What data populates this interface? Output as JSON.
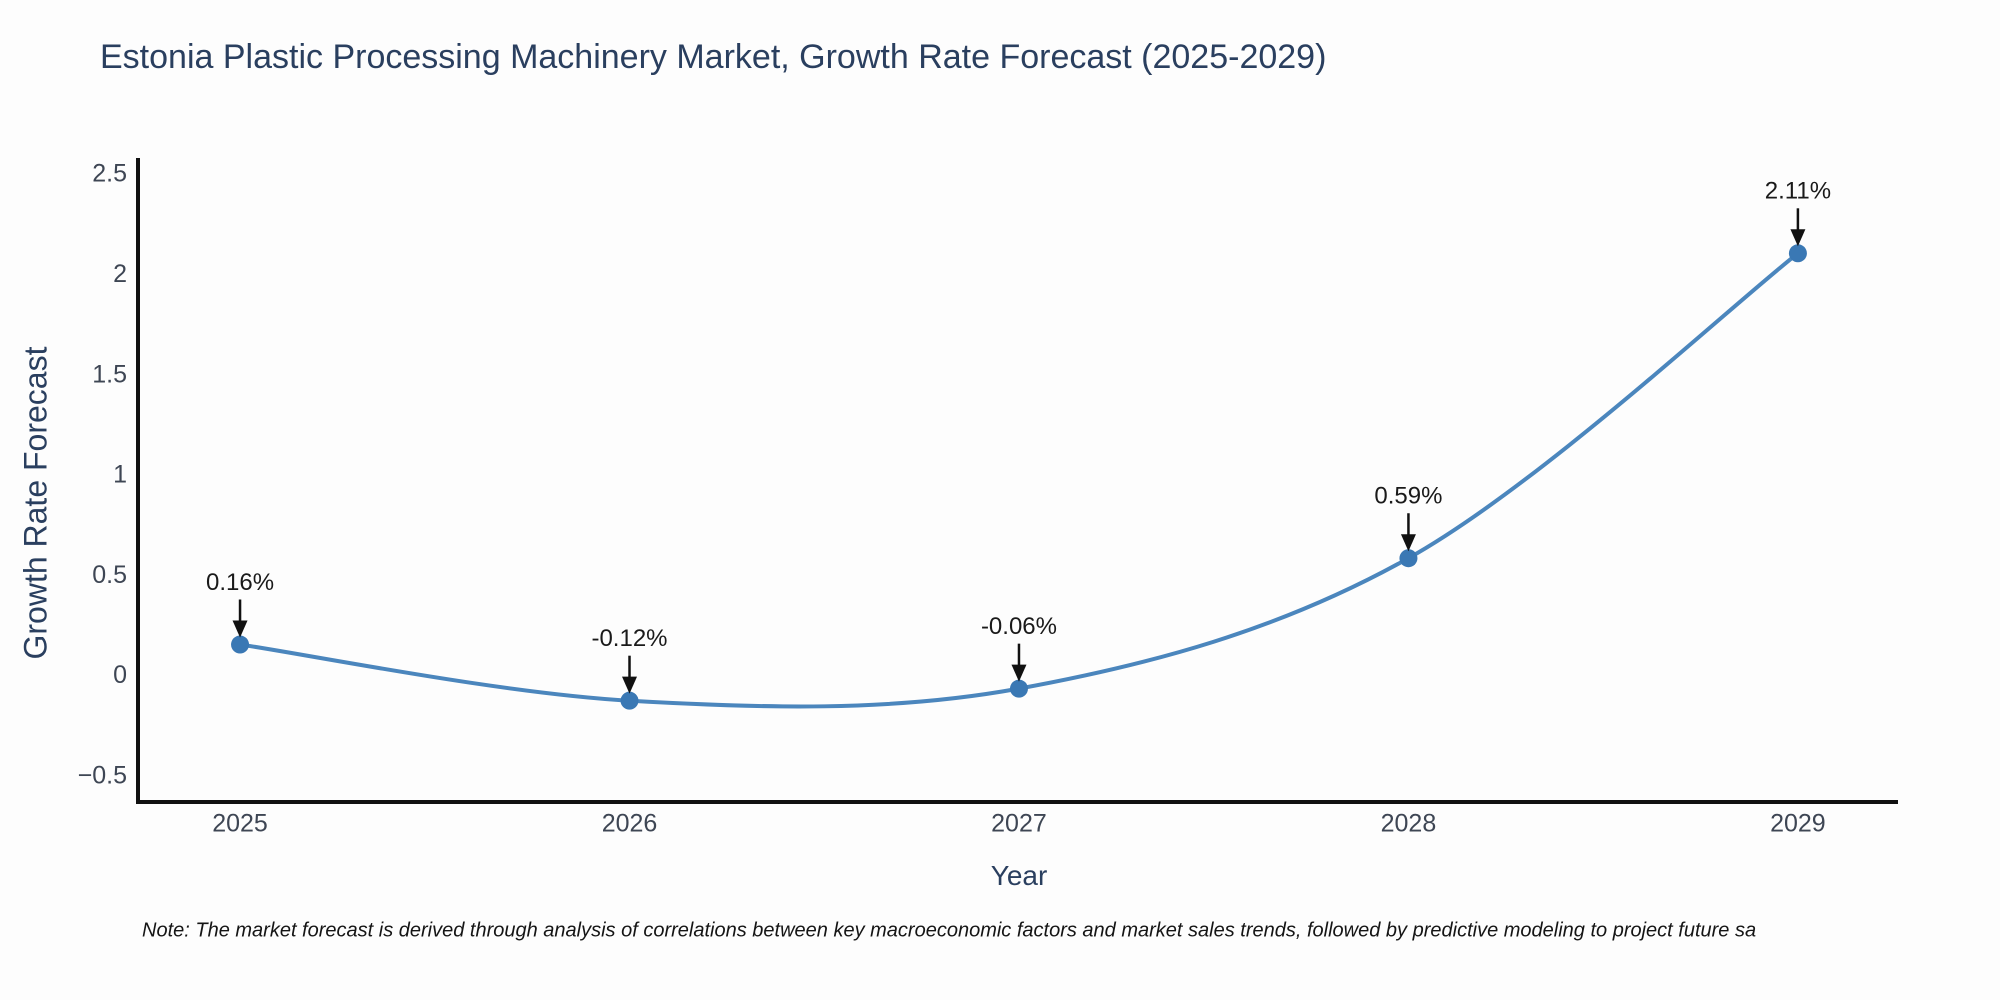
{
  "title": "Estonia Plastic Processing Machinery Market, Growth Rate Forecast (2025-2029)",
  "note": "Note: The market forecast is derived through analysis of correlations between key macroeconomic factors and market sales trends, followed by predictive modeling to project future sa",
  "chart_data": {
    "type": "line",
    "line_shape": "spline",
    "title": "Estonia Plastic Processing Machinery Market, Growth Rate Forecast (2025-2029)",
    "xlabel": "Year",
    "ylabel": "Growth Rate Forecast",
    "x": [
      2025,
      2026,
      2027,
      2028,
      2029
    ],
    "values": [
      0.16,
      -0.12,
      -0.06,
      0.59,
      2.11
    ],
    "point_labels": [
      "0.16%",
      "-0.12%",
      "-0.06%",
      "0.59%",
      "2.11%"
    ],
    "yticks": [
      -0.5,
      0,
      0.5,
      1,
      1.5,
      2,
      2.5
    ],
    "ylim": [
      -0.625,
      2.585
    ],
    "xlim": [
      2024.738,
      2029.257
    ],
    "grid": false,
    "legend": "none",
    "colors": {
      "line": "#4b86bd",
      "marker": "#3a78b4",
      "axis": "#111111",
      "arrow": "#111111",
      "title_text": "#2a3f5f",
      "tick_text": "#3e4654",
      "background": "#fdfdfd"
    }
  }
}
